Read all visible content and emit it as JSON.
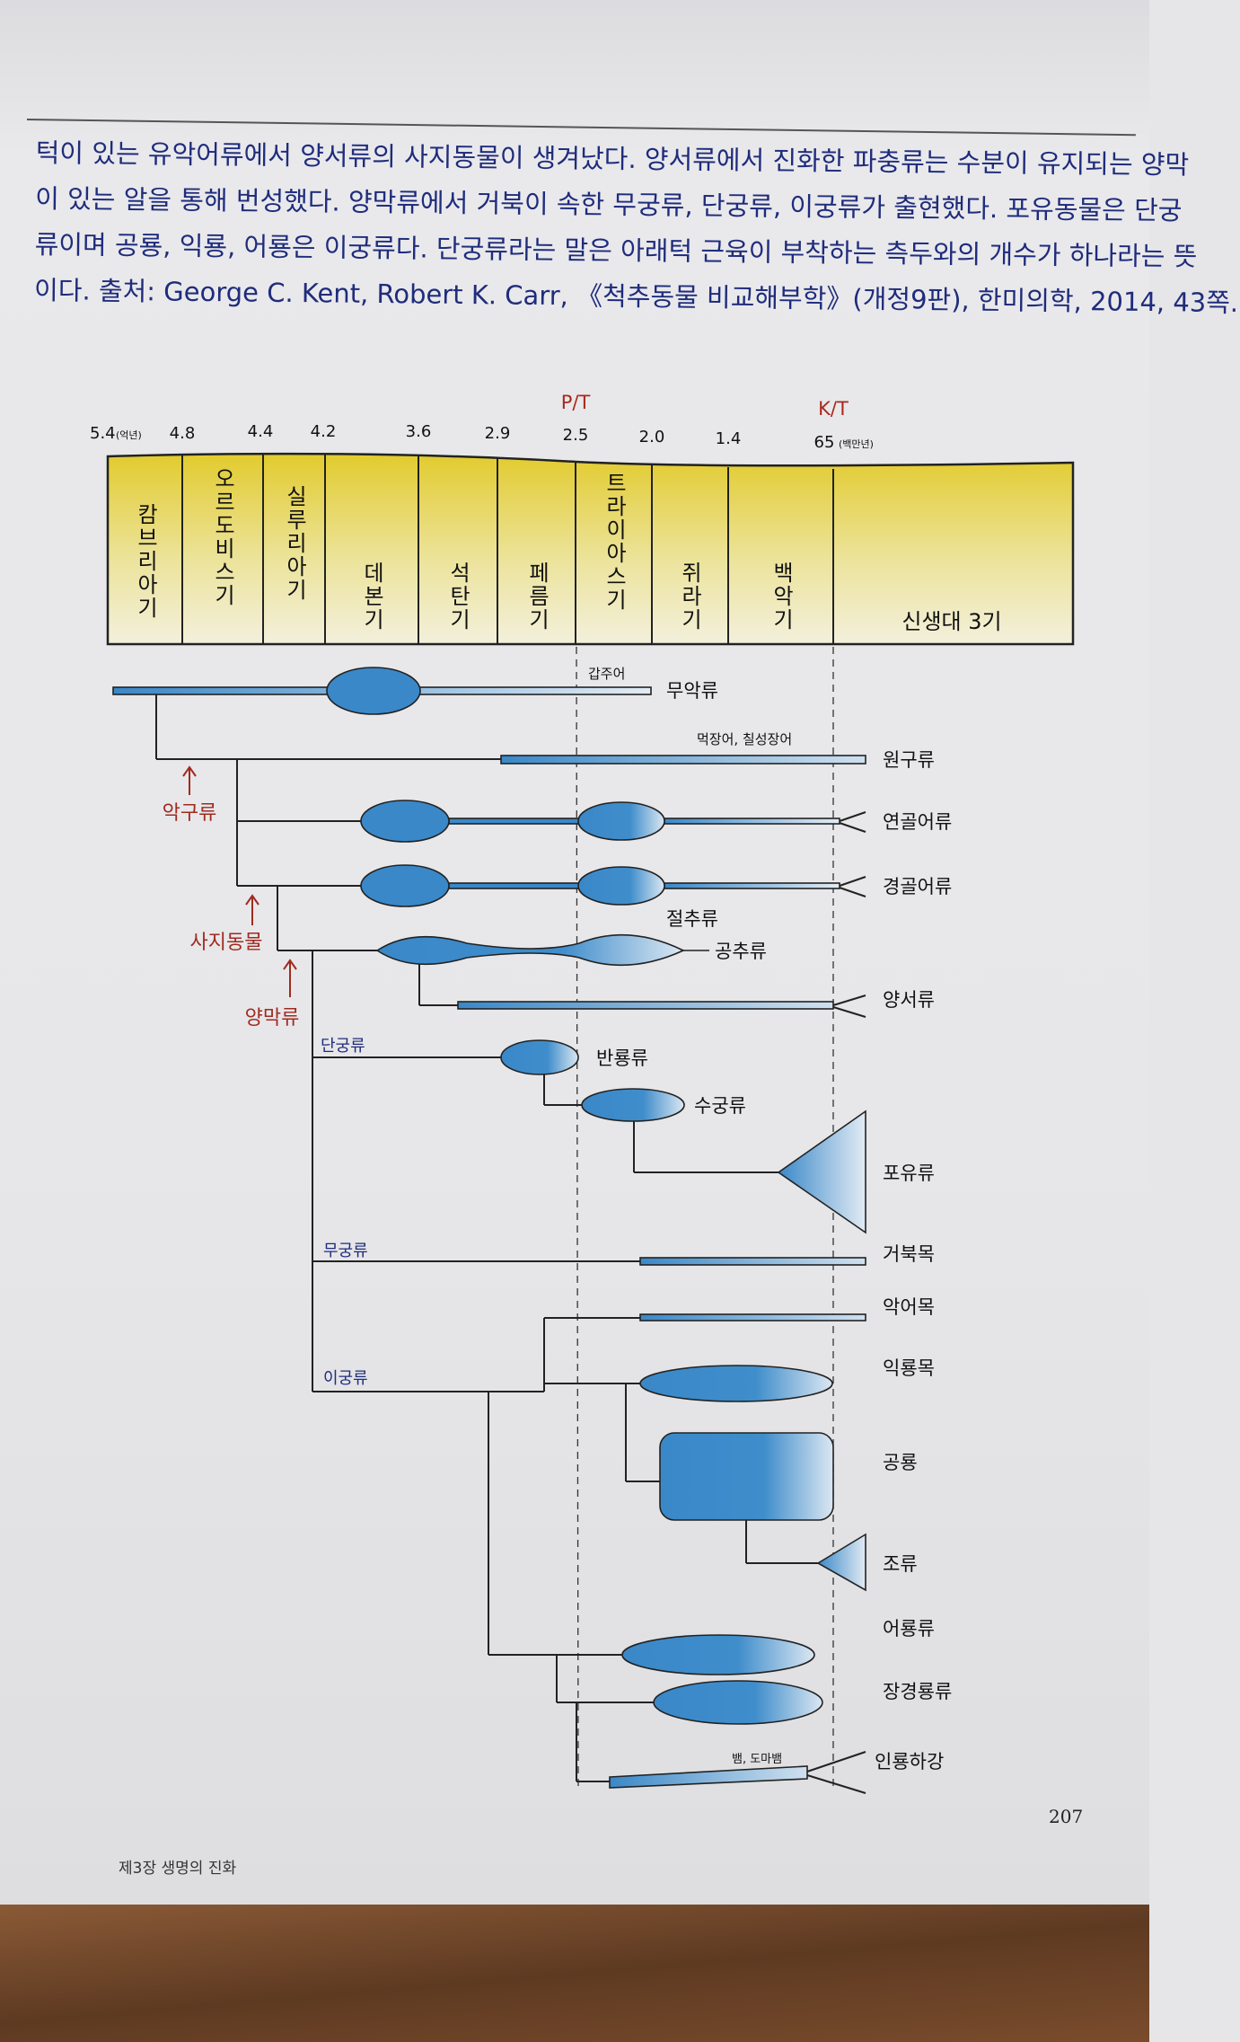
{
  "paragraph": {
    "lines": [
      "턱이 있는 유악어류에서 양서류의 사지동물이 생겨났다. 양서류에서 진화한 파충류는 수분이 유지되는 양막",
      "이 있는 알을 통해 번성했다. 양막류에서 거북이 속한 무궁류, 단궁류, 이궁류가 출현했다. 포유동물은 단궁",
      "류이며 공룡, 익룡, 어룡은 이궁류다. 단궁류라는 말은 아래턱 근육이 부착하는 측두와의 개수가 하나라는 뜻",
      "이다. 출처: George C. Kent, Robert K. Carr, 《척추동물 비교해부학》(개정9판), 한미의학, 2014, 43쪽."
    ]
  },
  "timeline": {
    "ticks": [
      "5.4",
      "4.8",
      "4.4",
      "4.2",
      "3.6",
      "2.9",
      "2.5",
      "2.0",
      "1.4",
      "65"
    ],
    "unit_first": "(억년)",
    "unit_last": "(백만년)",
    "events": [
      "P/T",
      "K/T"
    ],
    "periods": [
      "캄브리아기",
      "오르도비스기",
      "실루리아기",
      "데본기",
      "석탄기",
      "페름기",
      "트라이아스기",
      "쥐라기",
      "백악기",
      "신생대 3기"
    ]
  },
  "tree": {
    "taxa": {
      "agnatha": "무악류",
      "ostracoderm": "갑주어",
      "cyclostomata": "원구류",
      "hagfish_lamprey": "먹장어, 칠성장어",
      "chondrichthyes": "연골어류",
      "osteichthyes": "경골어류",
      "rhachitomi": "절추류",
      "lepospondyli": "공추류",
      "amphibia": "양서류",
      "pelycosaur": "반룡류",
      "therapsid": "수궁류",
      "mammalia": "포유류",
      "testudines": "거북목",
      "crocodilia": "악어목",
      "pterosauria": "익룡목",
      "dinosauria": "공룡",
      "aves": "조류",
      "ichthyosauria": "어룡류",
      "plesiosauria": "장경룡류",
      "squamata": "인룡하강",
      "snake_lizard": "뱀, 도마뱀"
    },
    "clades": {
      "gnathostomata": "악구류",
      "tetrapoda": "사지동물",
      "amniota": "양막류"
    },
    "groups": {
      "synapsida": "단궁류",
      "anapsida": "무궁류",
      "diapsida": "이궁류"
    }
  },
  "colors": {
    "text_blue": "#1f2c7c",
    "event_red": "#a8281e",
    "lineage_blue": "#3a88c8",
    "period_yellow": "#e2cb2e"
  },
  "footer": {
    "page_number": "207",
    "chapter": "제3장 생명의 진화"
  }
}
